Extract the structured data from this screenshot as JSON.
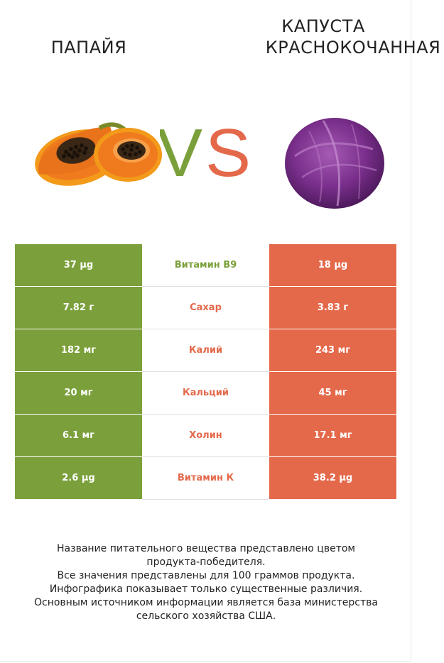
{
  "header": {
    "left_title": "ПАПАЙЯ",
    "right_title_line1": "КАПУСТА",
    "right_title_line2": "КРАСНОКОЧАННАЯ"
  },
  "vs": {
    "v_letter": "V",
    "s_letter": "S"
  },
  "colors": {
    "left": "#7ba03b",
    "right": "#e4694b"
  },
  "rows": [
    {
      "left": "37 µg",
      "nutrient": "Витамин B9",
      "right": "18 µg",
      "winner": "left"
    },
    {
      "left": "7.82 г",
      "nutrient": "Сахар",
      "right": "3.83 г",
      "winner": "right"
    },
    {
      "left": "182 мг",
      "nutrient": "Калий",
      "right": "243 мг",
      "winner": "right"
    },
    {
      "left": "20 мг",
      "nutrient": "Кальций",
      "right": "45 мг",
      "winner": "right"
    },
    {
      "left": "6.1 мг",
      "nutrient": "Холин",
      "right": "17.1 мг",
      "winner": "right"
    },
    {
      "left": "2.6 µg",
      "nutrient": "Витамин К",
      "right": "38.2 µg",
      "winner": "right"
    }
  ],
  "footer": {
    "line1": "Название питательного вещества представлено цветом",
    "line2": "продукта-победителя.",
    "line3": "Все значения представлены для 100 граммов продукта.",
    "line4": "Инфографика показывает только существенные различия.",
    "line5": "Основным источником информации является база министерства",
    "line6": "сельского хозяйства США."
  },
  "images": {
    "left_icon": "papaya-image",
    "right_icon": "red-cabbage-image"
  }
}
